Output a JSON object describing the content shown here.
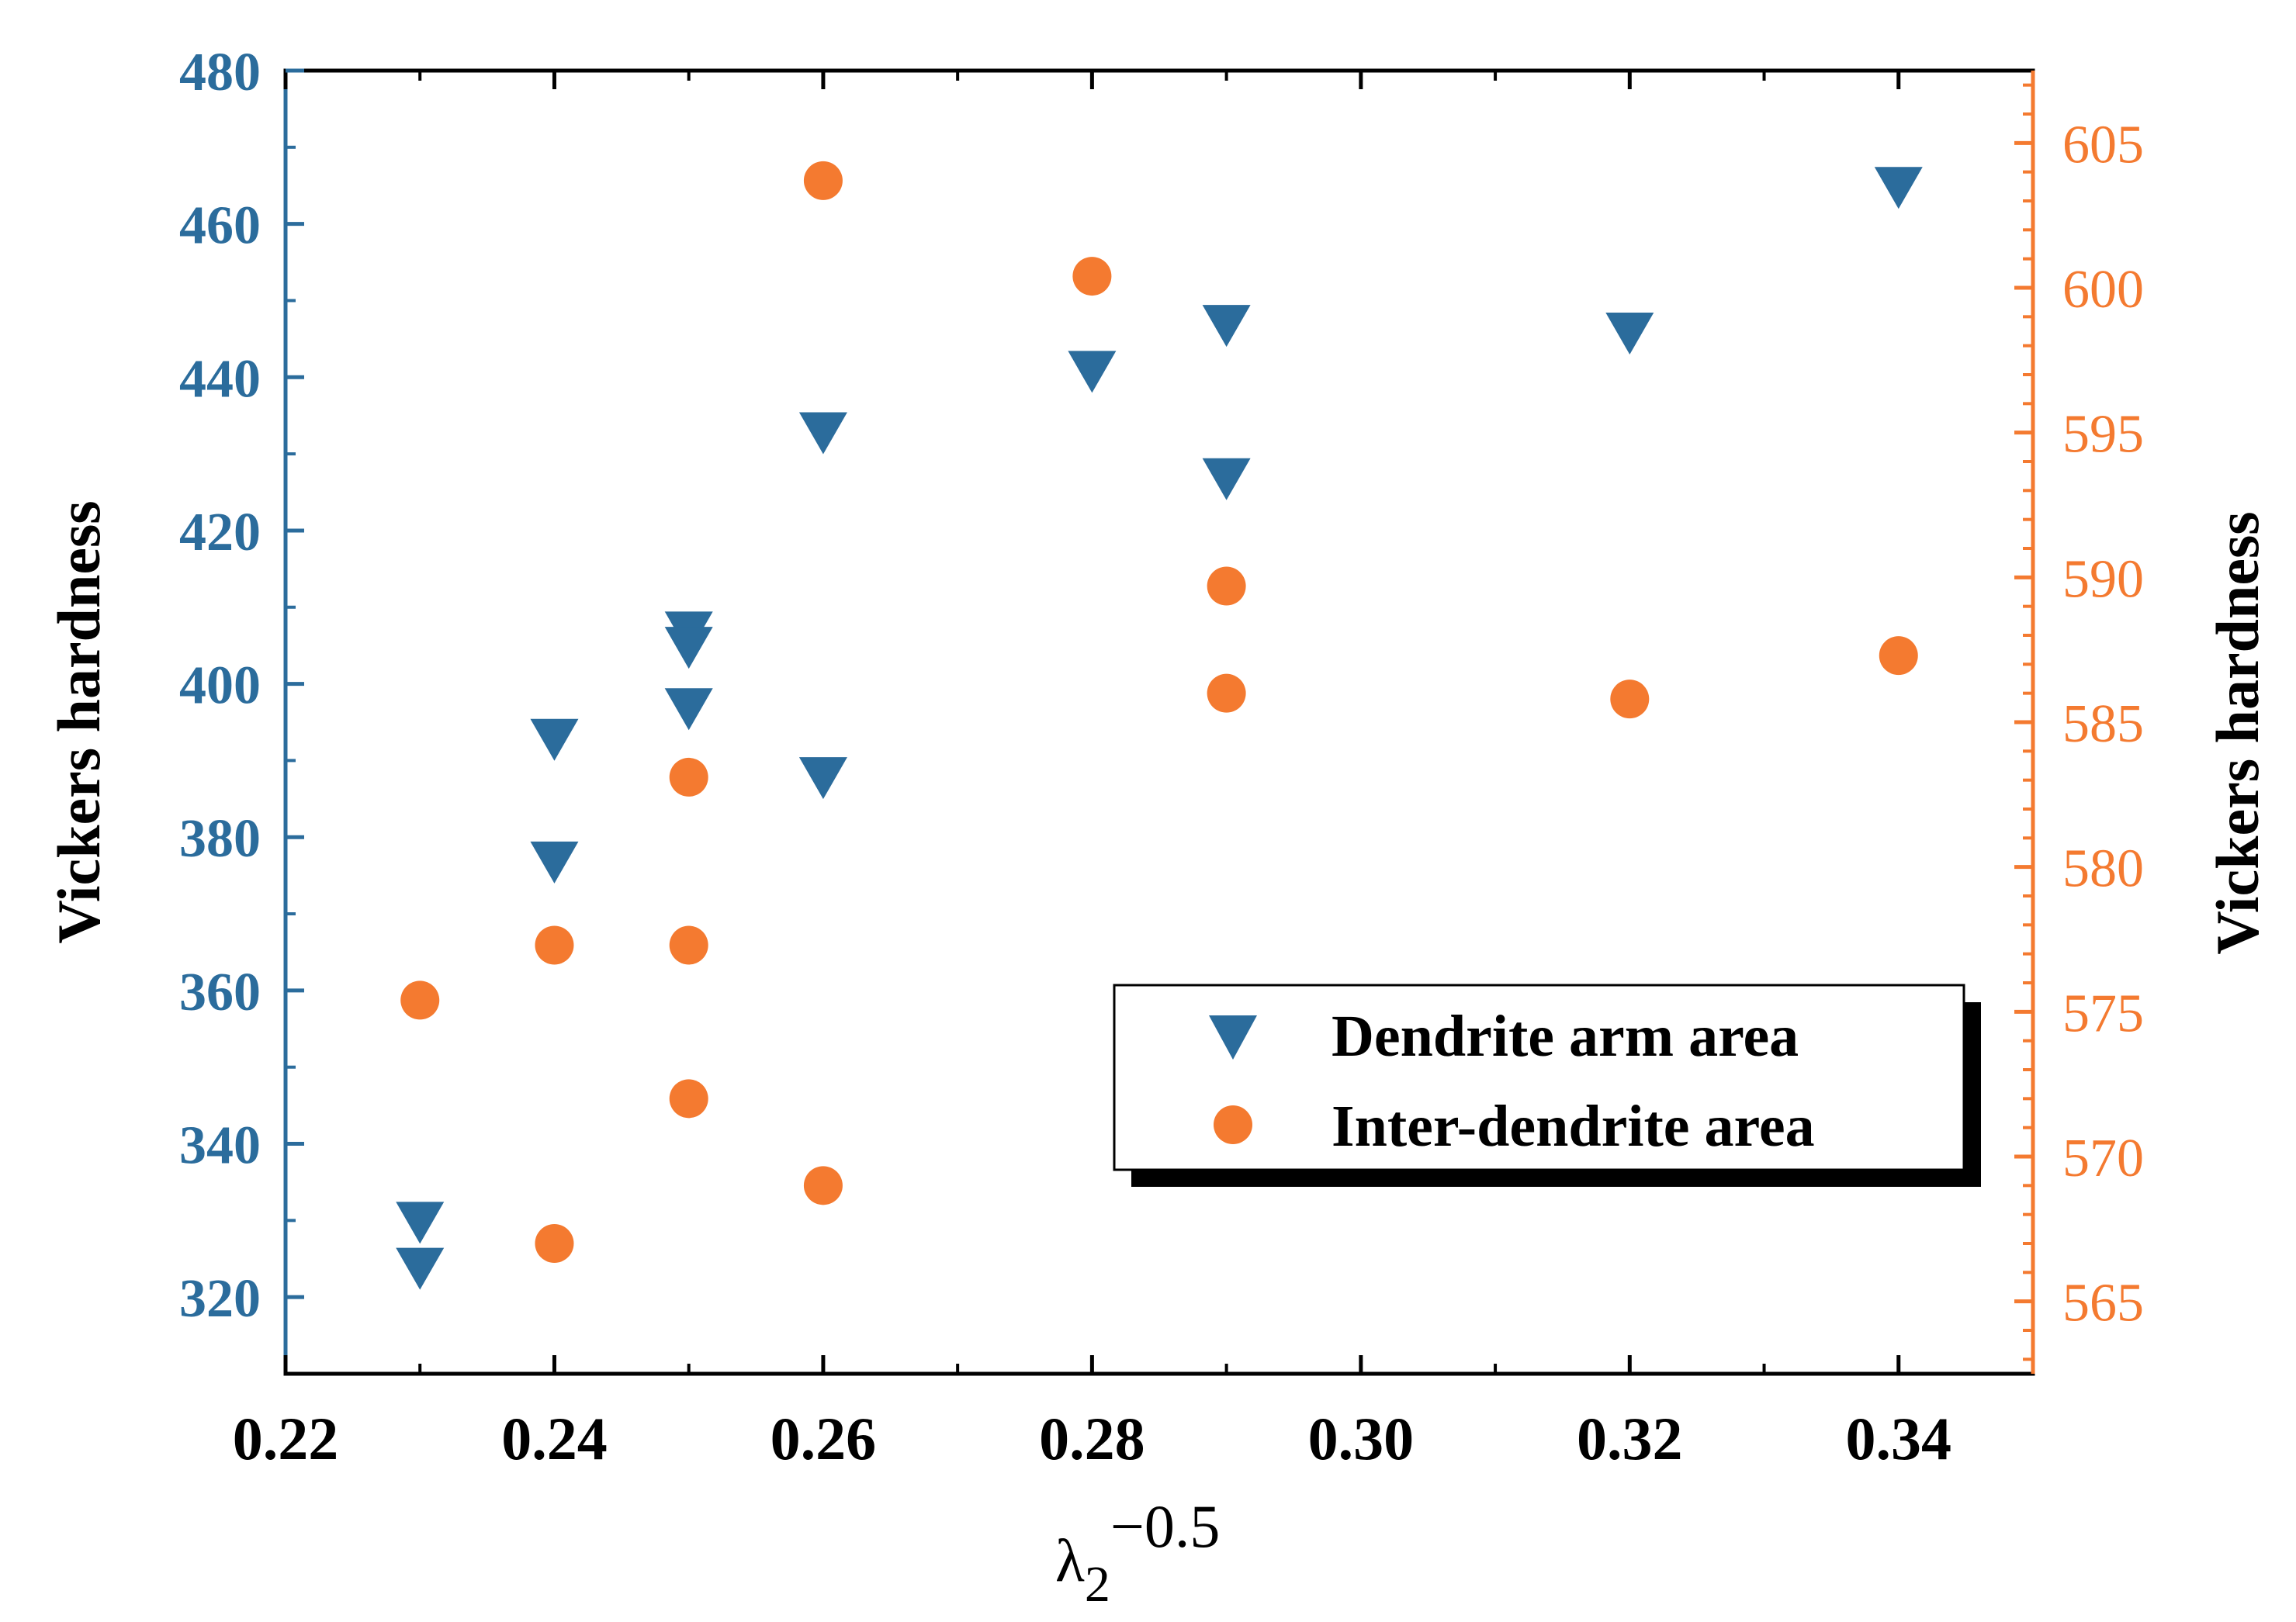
{
  "chart_data": {
    "type": "scatter",
    "title": "",
    "xlabel": {
      "base": "λ",
      "subscript": "2",
      "superscript": "−0.5"
    },
    "ylabel_left": "Vickers hardness",
    "ylabel_right": "Vickers hardness",
    "xlim": [
      0.22,
      0.35
    ],
    "ylim_left": [
      310,
      480
    ],
    "ylim_right": [
      562.5,
      607.5
    ],
    "x_ticks": [
      "0.22",
      "0.24",
      "0.26",
      "0.28",
      "0.30",
      "0.32",
      "0.34"
    ],
    "y_left_ticks": [
      "320",
      "340",
      "360",
      "380",
      "400",
      "420",
      "440",
      "460",
      "480"
    ],
    "y_right_ticks": [
      "565",
      "570",
      "575",
      "580",
      "585",
      "590",
      "595",
      "600",
      "605"
    ],
    "legend_position": "bottom-right",
    "colors": {
      "left_axis": "#2b6c9c",
      "right_axis": "#f47a30"
    },
    "series": [
      {
        "name": "Dendrite arm area",
        "axis": "left",
        "marker": "triangle-down",
        "color": "#2b6c9c",
        "x": [
          0.23,
          0.23,
          0.24,
          0.24,
          0.25,
          0.25,
          0.25,
          0.26,
          0.26,
          0.28,
          0.29,
          0.29,
          0.32,
          0.34
        ],
        "y": [
          330,
          324,
          393,
          377,
          407,
          405,
          397,
          388,
          433,
          441,
          447,
          427,
          446,
          465
        ]
      },
      {
        "name": "Inter-dendrite area",
        "axis": "right",
        "marker": "circle",
        "color": "#f47a30",
        "x": [
          0.23,
          0.24,
          0.24,
          0.25,
          0.25,
          0.25,
          0.26,
          0.26,
          0.28,
          0.29,
          0.29,
          0.32,
          0.34
        ],
        "y": [
          575.4,
          577.3,
          567.0,
          583.1,
          577.3,
          572.0,
          569.0,
          603.7,
          600.4,
          589.7,
          586.0,
          585.8,
          587.3
        ]
      }
    ]
  }
}
